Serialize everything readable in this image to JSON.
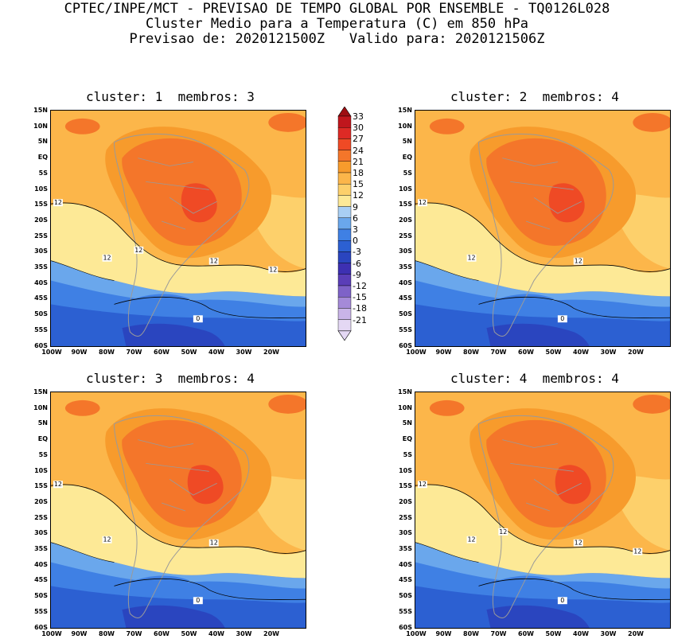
{
  "header": {
    "line1": "CPTEC/INPE/MCT - PREVISAO DE TEMPO GLOBAL POR ENSEMBLE - TQ0126L028",
    "line2": "Cluster Medio para a Temperatura (C) em 850 hPa",
    "line3": "Previsao de: 2020121500Z   Valido para: 2020121506Z"
  },
  "panels": [
    {
      "title": "cluster: 1  membros: 3",
      "contour_labels": [
        "12",
        "12",
        "12",
        "12",
        "12",
        "0"
      ]
    },
    {
      "title": "cluster: 2  membros: 4",
      "contour_labels": [
        "12",
        "12",
        "12",
        "0"
      ]
    },
    {
      "title": "cluster: 3  membros: 4",
      "contour_labels": [
        "12",
        "12",
        "12",
        "0"
      ]
    },
    {
      "title": "cluster: 4  membros: 4",
      "contour_labels": [
        "12",
        "12",
        "12",
        "12",
        "12",
        "0"
      ]
    }
  ],
  "axes": {
    "lat_labels": [
      "15N",
      "10N",
      "5N",
      "EQ",
      "5S",
      "10S",
      "15S",
      "20S",
      "25S",
      "30S",
      "35S",
      "40S",
      "45S",
      "50S",
      "55S",
      "60S"
    ],
    "lon_labels": [
      "100W",
      "90W",
      "80W",
      "70W",
      "60W",
      "50W",
      "40W",
      "30W",
      "20W"
    ]
  },
  "colorbar": {
    "labels": [
      "33",
      "30",
      "27",
      "24",
      "21",
      "18",
      "15",
      "12",
      "9",
      "6",
      "3",
      "0",
      "-3",
      "-6",
      "-9",
      "-12",
      "-15",
      "-18",
      "-21"
    ],
    "colors": [
      "#9e0e12",
      "#c0161d",
      "#de2a25",
      "#ef4a25",
      "#f4762a",
      "#f79b2c",
      "#fcb64a",
      "#fdd06b",
      "#fde996",
      "#a9cff4",
      "#6aa7ec",
      "#3f80e4",
      "#2c60d2",
      "#2a45bf",
      "#3d30b2",
      "#5a3eb8",
      "#7e62c8",
      "#a58ad8",
      "#c9b4e8",
      "#e4d8f4"
    ]
  }
}
